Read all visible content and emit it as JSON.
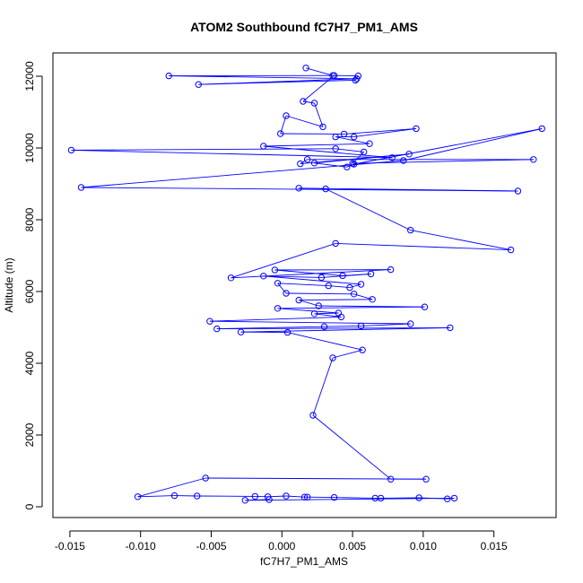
{
  "chart_data": {
    "type": "scatter",
    "title": "ATOM2 Southbound fC7H7_PM1_AMS",
    "xlabel": "fC7H7_PM1_AMS",
    "ylabel": "Altitude (m)",
    "xlim": [
      -0.0162,
      0.0194
    ],
    "ylim": [
      -300,
      12650
    ],
    "x_ticks": [
      -0.015,
      -0.01,
      -0.005,
      0.0,
      0.005,
      0.01,
      0.015
    ],
    "x_tick_labels": [
      "-0.015",
      "-0.010",
      "-0.005",
      "0.000",
      "0.005",
      "0.010",
      "0.015"
    ],
    "y_ticks": [
      0,
      2000,
      4000,
      6000,
      8000,
      10000,
      12000
    ],
    "y_tick_labels": [
      "0",
      "2000",
      "4000",
      "6000",
      "8000",
      "10000",
      "12000"
    ],
    "connect_points": true,
    "marker": "open-circle",
    "color": "#0000ff",
    "grid": false,
    "series": [
      {
        "name": "",
        "points": [
          [
            0.0017,
            12230
          ],
          [
            0.0036,
            12020
          ],
          [
            0.0054,
            12010
          ],
          [
            0.0052,
            11890
          ],
          [
            -0.0059,
            11770
          ],
          [
            0.0053,
            11930
          ],
          [
            -0.008,
            12010
          ],
          [
            0.0037,
            12020
          ],
          [
            0.0015,
            11300
          ],
          [
            0.0023,
            11250
          ],
          [
            0.0029,
            10590
          ],
          [
            0.0003,
            10900
          ],
          [
            -0.0001,
            10400
          ],
          [
            0.0044,
            10390
          ],
          [
            0.0095,
            10540
          ],
          [
            0.0051,
            10310
          ],
          [
            0.0038,
            10310
          ],
          [
            0.0062,
            10120
          ],
          [
            -0.0013,
            10050
          ],
          [
            0.0078,
            9730
          ],
          [
            -0.0149,
            9940
          ],
          [
            0.0038,
            9980
          ],
          [
            0.0058,
            9890
          ],
          [
            0.005,
            9570
          ],
          [
            0.0178,
            9680
          ],
          [
            0.0018,
            9680
          ],
          [
            0.0013,
            9560
          ],
          [
            0.009,
            9830
          ],
          [
            0.0023,
            9580
          ],
          [
            0.0046,
            9470
          ],
          [
            0.0051,
            9550
          ],
          [
            0.0184,
            10540
          ],
          [
            0.0086,
            9650
          ],
          [
            -0.0142,
            8900
          ],
          [
            0.0167,
            8800
          ],
          [
            0.0012,
            8880
          ],
          [
            0.0031,
            8860
          ],
          [
            0.0091,
            7710
          ],
          [
            0.0162,
            7160
          ],
          [
            0.0038,
            7340
          ],
          [
            -0.0036,
            6380
          ],
          [
            0.0077,
            6610
          ],
          [
            -0.0005,
            6600
          ],
          [
            0.0043,
            6440
          ],
          [
            0.0063,
            6490
          ],
          [
            0.0028,
            6390
          ],
          [
            -0.0013,
            6430
          ],
          [
            0.0056,
            6200
          ],
          [
            0.0048,
            6110
          ],
          [
            0.0033,
            6160
          ],
          [
            -0.0003,
            6230
          ],
          [
            0.0003,
            5950
          ],
          [
            0.0051,
            5930
          ],
          [
            0.0064,
            5780
          ],
          [
            0.0012,
            5760
          ],
          [
            0.0026,
            5600
          ],
          [
            0.0101,
            5570
          ],
          [
            -0.0003,
            5530
          ],
          [
            0.004,
            5400
          ],
          [
            0.0023,
            5380
          ],
          [
            0.0042,
            5290
          ],
          [
            -0.0051,
            5170
          ],
          [
            0.0091,
            5100
          ],
          [
            0.0056,
            5040
          ],
          [
            0.003,
            5020
          ],
          [
            -0.0046,
            4960
          ],
          [
            0.0119,
            4990
          ],
          [
            -0.0029,
            4870
          ],
          [
            0.0004,
            4860
          ],
          [
            0.0057,
            4370
          ],
          [
            0.0036,
            4150
          ],
          [
            0.0022,
            2550
          ],
          [
            0.0077,
            770
          ],
          [
            0.0102,
            770
          ],
          [
            -0.0054,
            800
          ],
          [
            -0.0102,
            280
          ],
          [
            -0.0076,
            310
          ],
          [
            -0.006,
            300
          ],
          [
            -0.0019,
            290
          ],
          [
            -0.001,
            280
          ],
          [
            0.0003,
            300
          ],
          [
            0.0016,
            270
          ],
          [
            0.0018,
            270
          ],
          [
            0.0037,
            260
          ],
          [
            0.0066,
            240
          ],
          [
            0.007,
            240
          ],
          [
            0.0097,
            250
          ],
          [
            0.0117,
            220
          ],
          [
            0.0122,
            240
          ],
          [
            -0.0026,
            180
          ],
          [
            -0.0009,
            200
          ]
        ]
      }
    ]
  }
}
